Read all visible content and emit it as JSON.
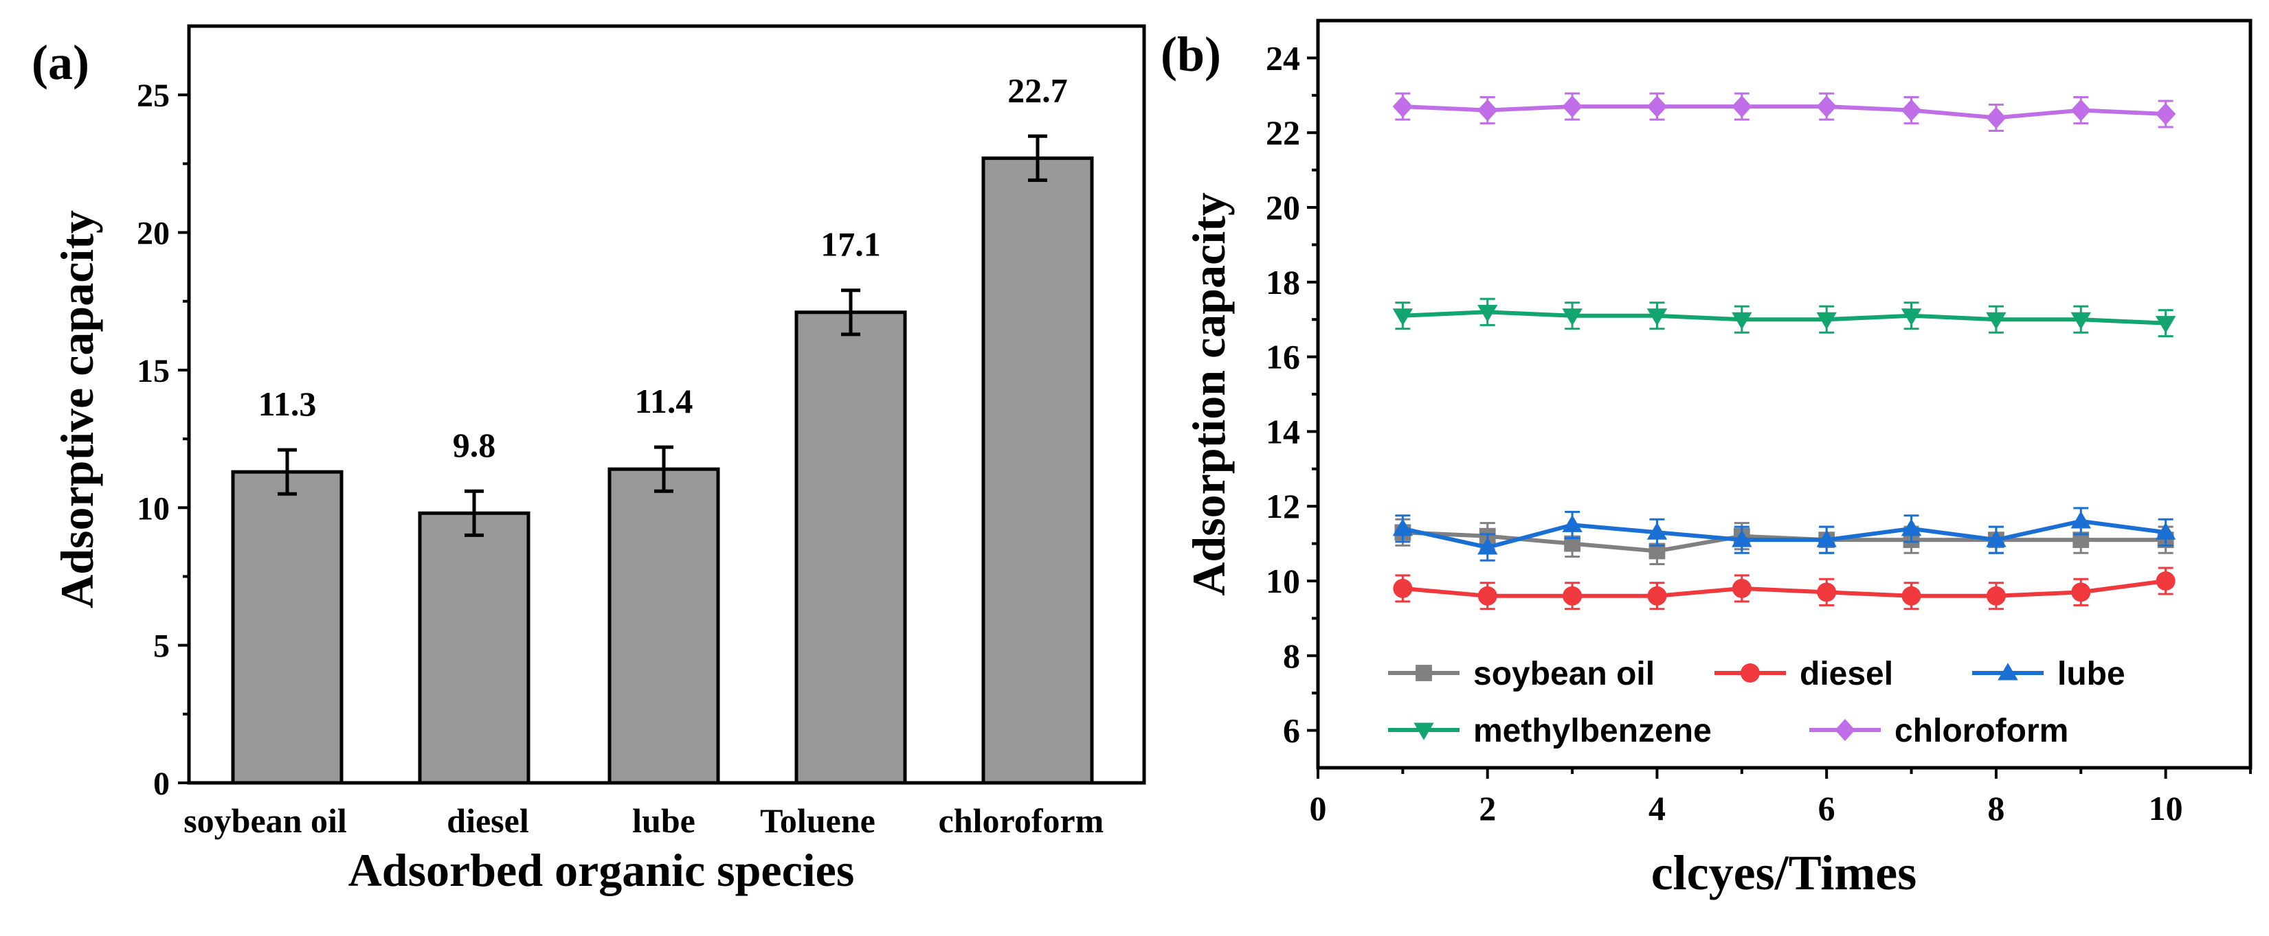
{
  "chart_data": [
    {
      "type": "bar",
      "panel_label": "(a)",
      "title": "",
      "xlabel": "Adsorbed organic species",
      "ylabel": "Adsorptive capacity",
      "categories": [
        "soybean oil",
        "diesel",
        "lube",
        "Toluene",
        "chloroform"
      ],
      "values": [
        11.3,
        9.8,
        11.4,
        17.1,
        22.7
      ],
      "errors": [
        0.8,
        0.8,
        0.8,
        0.8,
        0.8
      ],
      "data_labels": [
        "11.3",
        "9.8",
        "11.4",
        "17.1",
        "22.7"
      ],
      "ylim": [
        0,
        27.5
      ],
      "yticks": [
        0,
        5,
        10,
        15,
        20,
        25
      ],
      "ytick_labels": [
        "0",
        "5",
        "10",
        "15",
        "20",
        "25"
      ],
      "bar_color": "#999999",
      "grid": false
    },
    {
      "type": "line",
      "panel_label": "(b)",
      "title": "",
      "xlabel": "clcyes/Times",
      "ylabel": "Adsorption capacity",
      "x": [
        1,
        2,
        3,
        4,
        5,
        6,
        7,
        8,
        9,
        10
      ],
      "xlim": [
        0,
        11
      ],
      "ylim": [
        5,
        25
      ],
      "xticks": [
        0,
        2,
        4,
        6,
        8,
        10
      ],
      "xtick_labels": [
        "0",
        "2",
        "4",
        "6",
        "8",
        "10"
      ],
      "yticks": [
        6,
        8,
        10,
        12,
        14,
        16,
        18,
        20,
        22,
        24
      ],
      "ytick_labels": [
        "6",
        "8",
        "10",
        "12",
        "14",
        "16",
        "18",
        "20",
        "22",
        "24"
      ],
      "error": 0.35,
      "legend_position": "bottom-left",
      "grid": false,
      "series": [
        {
          "name": "soybean oil",
          "marker": "square",
          "color": "#808080",
          "values": [
            11.3,
            11.2,
            11.0,
            10.8,
            11.2,
            11.1,
            11.1,
            11.1,
            11.1,
            11.1
          ]
        },
        {
          "name": "diesel",
          "marker": "circle",
          "color": "#f0393c",
          "values": [
            9.8,
            9.6,
            9.6,
            9.6,
            9.8,
            9.7,
            9.6,
            9.6,
            9.7,
            10.0
          ]
        },
        {
          "name": "lube",
          "marker": "triangle-up",
          "color": "#1a6fd4",
          "values": [
            11.4,
            10.9,
            11.5,
            11.3,
            11.1,
            11.1,
            11.4,
            11.1,
            11.6,
            11.3
          ]
        },
        {
          "name": "methylbenzene",
          "marker": "triangle-down",
          "color": "#13a56f",
          "values": [
            17.1,
            17.2,
            17.1,
            17.1,
            17.0,
            17.0,
            17.1,
            17.0,
            17.0,
            16.9
          ]
        },
        {
          "name": "chloroform",
          "marker": "diamond",
          "color": "#c06ee8",
          "values": [
            22.7,
            22.6,
            22.7,
            22.7,
            22.7,
            22.7,
            22.6,
            22.4,
            22.6,
            22.5
          ]
        }
      ]
    }
  ]
}
